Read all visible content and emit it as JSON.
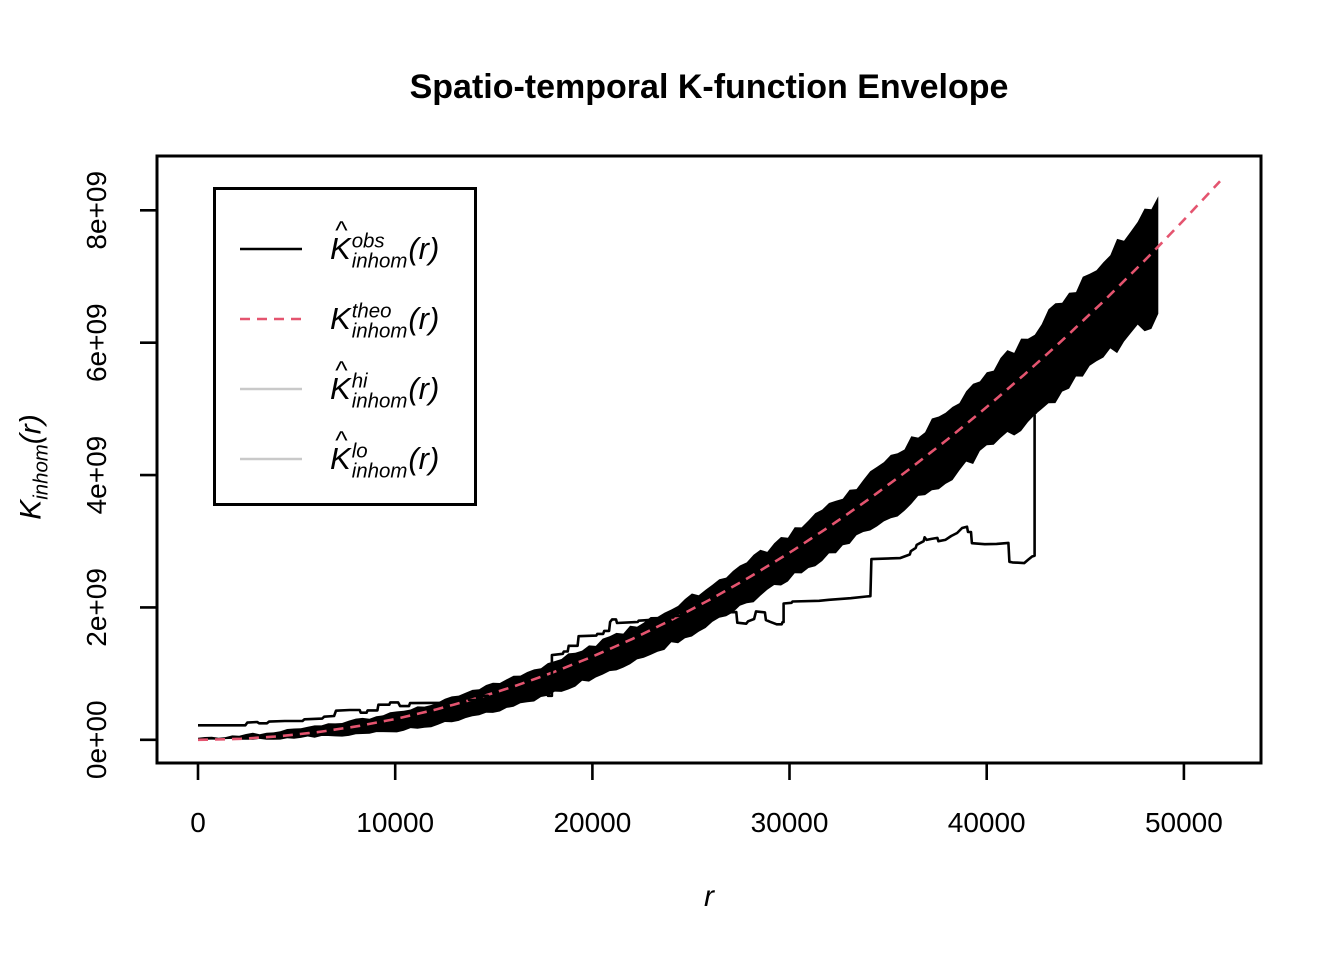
{
  "title": {
    "text": "Spatio-temporal K-function Envelope"
  },
  "x_axis": {
    "label": "r",
    "ticks": [
      {
        "value": 0,
        "label": "0"
      },
      {
        "value": 10000,
        "label": "10000"
      },
      {
        "value": 20000,
        "label": "20000"
      },
      {
        "value": 30000,
        "label": "30000"
      },
      {
        "value": 40000,
        "label": "40000"
      },
      {
        "value": 50000,
        "label": "50000"
      }
    ]
  },
  "y_axis": {
    "label": {
      "base": "K",
      "sub": "inhom",
      "arg": "(r)"
    },
    "ticks": [
      {
        "value": 0,
        "label": "0e+00"
      },
      {
        "value": 2,
        "label": "2e+09"
      },
      {
        "value": 4,
        "label": "4e+09"
      },
      {
        "value": 6,
        "label": "6e+09"
      },
      {
        "value": 8,
        "label": "8e+09"
      }
    ]
  },
  "legend": {
    "entries": [
      {
        "id": "obs",
        "hat": true,
        "base": "K",
        "sup": "obs",
        "sub": "inhom",
        "arg": "(r)",
        "line_style": "solid",
        "line_color": "#000000"
      },
      {
        "id": "theo",
        "hat": false,
        "base": "K",
        "sup": "theo",
        "sub": "inhom",
        "arg": "(r)",
        "line_style": "dashed",
        "line_color": "#E4546F"
      },
      {
        "id": "hi",
        "hat": true,
        "base": "K",
        "sup": "hi",
        "sub": "inhom",
        "arg": "(r)",
        "line_style": "solid",
        "line_color": "#C9C9C9"
      },
      {
        "id": "lo",
        "hat": true,
        "base": "K",
        "sup": "lo",
        "sub": "inhom",
        "arg": "(r)",
        "line_style": "solid",
        "line_color": "#C9C9C9"
      }
    ]
  },
  "colors": {
    "background": "#FFFFFF",
    "box": "#000000",
    "text": "#000000",
    "obs_line": "#000000",
    "theo_line": "#E4546F",
    "envelope_fill": "#C3C3C3",
    "legend_grey_line": "#C9C9C9"
  },
  "chart_data": {
    "type": "line",
    "title": "Spatio-temporal K-function Envelope",
    "xlabel": "r",
    "ylabel": "K_inhom(r)",
    "y_value_unit": "1e9",
    "xlim": [
      -2080,
      53910
    ],
    "ylim_1e9": [
      -0.35,
      8.82
    ],
    "grid": false,
    "legend_position": "top-left",
    "envelope_r_max": 48700,
    "series": [
      {
        "name": "obs_Kinhom_observed",
        "style": "solid-step",
        "color": "#000000",
        "points_r_K1e9": [
          [
            0,
            0.22
          ],
          [
            2400,
            0.22
          ],
          [
            2500,
            0.26
          ],
          [
            3000,
            0.27
          ],
          [
            3100,
            0.25
          ],
          [
            3500,
            0.25
          ],
          [
            3600,
            0.275
          ],
          [
            4400,
            0.285
          ],
          [
            5300,
            0.285
          ],
          [
            5400,
            0.31
          ],
          [
            6300,
            0.32
          ],
          [
            6400,
            0.35
          ],
          [
            6900,
            0.36
          ],
          [
            7000,
            0.44
          ],
          [
            7700,
            0.45
          ],
          [
            8200,
            0.45
          ],
          [
            8250,
            0.41
          ],
          [
            8550,
            0.41
          ],
          [
            8600,
            0.445
          ],
          [
            9100,
            0.445
          ],
          [
            9150,
            0.53
          ],
          [
            9700,
            0.53
          ],
          [
            9750,
            0.565
          ],
          [
            10150,
            0.565
          ],
          [
            10250,
            0.51
          ],
          [
            10700,
            0.51
          ],
          [
            10750,
            0.555
          ],
          [
            12700,
            0.56
          ],
          [
            12750,
            0.585
          ],
          [
            13000,
            0.585
          ],
          [
            13050,
            0.625
          ],
          [
            13400,
            0.625
          ],
          [
            13450,
            0.65
          ],
          [
            13700,
            0.65
          ],
          [
            13750,
            0.6
          ],
          [
            14200,
            0.6
          ],
          [
            14250,
            0.665
          ],
          [
            14700,
            0.665
          ],
          [
            14750,
            0.63
          ],
          [
            15200,
            0.63
          ],
          [
            15250,
            0.66
          ],
          [
            16700,
            0.66
          ],
          [
            16750,
            0.64
          ],
          [
            16950,
            0.64
          ],
          [
            17000,
            0.69
          ],
          [
            17700,
            0.7
          ],
          [
            17750,
            0.665
          ],
          [
            17950,
            0.665
          ],
          [
            17950,
            1.28
          ],
          [
            18500,
            1.3
          ],
          [
            18550,
            1.335
          ],
          [
            18750,
            1.335
          ],
          [
            18800,
            1.42
          ],
          [
            19250,
            1.42
          ],
          [
            19300,
            1.565
          ],
          [
            20200,
            1.575
          ],
          [
            20250,
            1.6
          ],
          [
            20550,
            1.6
          ],
          [
            20600,
            1.645
          ],
          [
            20850,
            1.645
          ],
          [
            20900,
            1.78
          ],
          [
            21000,
            1.82
          ],
          [
            21200,
            1.82
          ],
          [
            21250,
            1.765
          ],
          [
            22300,
            1.78
          ],
          [
            22350,
            1.8
          ],
          [
            23300,
            1.82
          ],
          [
            23350,
            1.84
          ],
          [
            24100,
            1.85
          ],
          [
            24150,
            1.87
          ],
          [
            24800,
            1.875
          ],
          [
            24850,
            1.89
          ],
          [
            26200,
            1.92
          ],
          [
            27300,
            1.93
          ],
          [
            27350,
            1.77
          ],
          [
            27800,
            1.755
          ],
          [
            27900,
            1.79
          ],
          [
            28200,
            1.825
          ],
          [
            28250,
            1.88
          ],
          [
            28300,
            1.94
          ],
          [
            28750,
            1.925
          ],
          [
            28800,
            1.81
          ],
          [
            29000,
            1.785
          ],
          [
            29350,
            1.745
          ],
          [
            29600,
            1.745
          ],
          [
            29650,
            1.78
          ],
          [
            29700,
            1.78
          ],
          [
            29700,
            2.06
          ],
          [
            30100,
            2.07
          ],
          [
            30150,
            2.09
          ],
          [
            31500,
            2.1
          ],
          [
            32000,
            2.115
          ],
          [
            33100,
            2.14
          ],
          [
            33900,
            2.165
          ],
          [
            34100,
            2.17
          ],
          [
            34150,
            2.73
          ],
          [
            35600,
            2.745
          ],
          [
            36100,
            2.8
          ],
          [
            36150,
            2.85
          ],
          [
            36400,
            2.9
          ],
          [
            36450,
            2.945
          ],
          [
            36800,
            3.0
          ],
          [
            36850,
            3.06
          ],
          [
            36950,
            3.02
          ],
          [
            37200,
            3.035
          ],
          [
            37500,
            3.05
          ],
          [
            37550,
            3.0
          ],
          [
            37900,
            3.02
          ],
          [
            38200,
            3.08
          ],
          [
            38500,
            3.125
          ],
          [
            38750,
            3.2
          ],
          [
            39000,
            3.22
          ],
          [
            39050,
            3.14
          ],
          [
            39200,
            3.14
          ],
          [
            39250,
            2.97
          ],
          [
            39900,
            2.955
          ],
          [
            40500,
            2.96
          ],
          [
            41100,
            2.975
          ],
          [
            41150,
            2.69
          ],
          [
            41300,
            2.68
          ],
          [
            41900,
            2.67
          ],
          [
            42100,
            2.72
          ],
          [
            42300,
            2.77
          ],
          [
            42430,
            2.78
          ],
          [
            42430,
            4.93
          ],
          [
            42520,
            4.95
          ]
        ]
      },
      {
        "name": "theo_Kinhom_theoretical",
        "style": "dashed",
        "color": "#E4546F",
        "points_r_K1e9": [
          [
            0,
            0
          ],
          [
            2000,
            0.01257
          ],
          [
            4000,
            0.05027
          ],
          [
            6000,
            0.1131
          ],
          [
            8000,
            0.20106
          ],
          [
            10000,
            0.31416
          ],
          [
            12000,
            0.45239
          ],
          [
            14000,
            0.61575
          ],
          [
            16000,
            0.80425
          ],
          [
            18000,
            1.01788
          ],
          [
            20000,
            1.25664
          ],
          [
            22000,
            1.52053
          ],
          [
            24000,
            1.80956
          ],
          [
            26000,
            2.12372
          ],
          [
            28000,
            2.46301
          ],
          [
            30000,
            2.82743
          ],
          [
            32000,
            3.21699
          ],
          [
            34000,
            3.63168
          ],
          [
            36000,
            4.0715
          ],
          [
            38000,
            4.53646
          ],
          [
            40000,
            5.02655
          ],
          [
            42000,
            5.54177
          ],
          [
            44000,
            6.08212
          ],
          [
            46000,
            6.64761
          ],
          [
            48000,
            7.23823
          ],
          [
            50000,
            7.85398
          ],
          [
            51830,
            8.43857
          ]
        ]
      },
      {
        "name": "hi_envelope_upper",
        "style": "band-edge",
        "color": "#C3C3C3",
        "points_r_K1e9": [
          [
            0,
            0.02
          ],
          [
            2000,
            0.065
          ],
          [
            4000,
            0.125
          ],
          [
            6000,
            0.205
          ],
          [
            8000,
            0.3
          ],
          [
            10000,
            0.41
          ],
          [
            12000,
            0.56
          ],
          [
            14000,
            0.74
          ],
          [
            16000,
            0.95
          ],
          [
            18000,
            1.18
          ],
          [
            20000,
            1.43
          ],
          [
            22000,
            1.7
          ],
          [
            24000,
            2.0
          ],
          [
            26000,
            2.33
          ],
          [
            28000,
            2.72
          ],
          [
            30000,
            3.1
          ],
          [
            32000,
            3.53
          ],
          [
            34000,
            3.98
          ],
          [
            36000,
            4.48
          ],
          [
            38000,
            4.99
          ],
          [
            40000,
            5.53
          ],
          [
            42000,
            6.08
          ],
          [
            44000,
            6.68
          ],
          [
            46000,
            7.3
          ],
          [
            48000,
            7.95
          ],
          [
            48700,
            8.1
          ]
        ]
      },
      {
        "name": "lo_envelope_lower",
        "style": "band-edge",
        "color": "#C3C3C3",
        "points_r_K1e9": [
          [
            0,
            0.0
          ],
          [
            2000,
            0.0
          ],
          [
            4000,
            0.01
          ],
          [
            6000,
            0.04
          ],
          [
            8000,
            0.08
          ],
          [
            10000,
            0.12
          ],
          [
            12000,
            0.22
          ],
          [
            14000,
            0.35
          ],
          [
            16000,
            0.5
          ],
          [
            18000,
            0.7
          ],
          [
            20000,
            0.92
          ],
          [
            22000,
            1.17
          ],
          [
            24000,
            1.44
          ],
          [
            26000,
            1.74
          ],
          [
            28000,
            2.08
          ],
          [
            30000,
            2.44
          ],
          [
            32000,
            2.79
          ],
          [
            34000,
            3.14
          ],
          [
            36000,
            3.53
          ],
          [
            38000,
            3.94
          ],
          [
            40000,
            4.38
          ],
          [
            42000,
            4.8
          ],
          [
            44000,
            5.28
          ],
          [
            46000,
            5.8
          ],
          [
            48000,
            6.25
          ],
          [
            48700,
            6.35
          ]
        ]
      }
    ]
  }
}
